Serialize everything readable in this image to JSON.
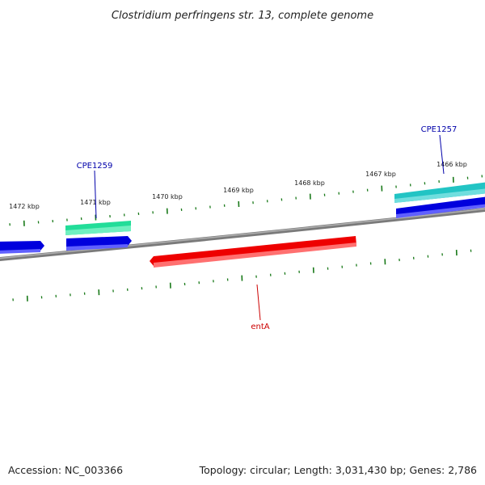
{
  "title": "Clostridium perfringens str. 13, complete genome",
  "footer": {
    "accession": "Accession: NC_003366",
    "summary": "Topology: circular; Length: 3,031,430 bp; Genes: 2,786"
  },
  "colors": {
    "backbone": "#888888",
    "tick": "#1a7a1a",
    "label_reverse": "#cc0000",
    "label_forward": "#0000aa",
    "gene_blue": "#0000dd",
    "gene_green": "#22dd99",
    "gene_cyan": "#22c4c4",
    "gene_red": "#ee0000"
  },
  "ticks": [
    {
      "label": "1472 kbp"
    },
    {
      "label": "1471 kbp"
    },
    {
      "label": "1470 kbp"
    },
    {
      "label": "1469 kbp"
    },
    {
      "label": "1468 kbp"
    },
    {
      "label": "1467 kbp"
    },
    {
      "label": "1466 kbp"
    }
  ],
  "gene_labels": [
    {
      "name": "CPE1259"
    },
    {
      "name": "CPE1257"
    },
    {
      "name": "entA"
    }
  ]
}
